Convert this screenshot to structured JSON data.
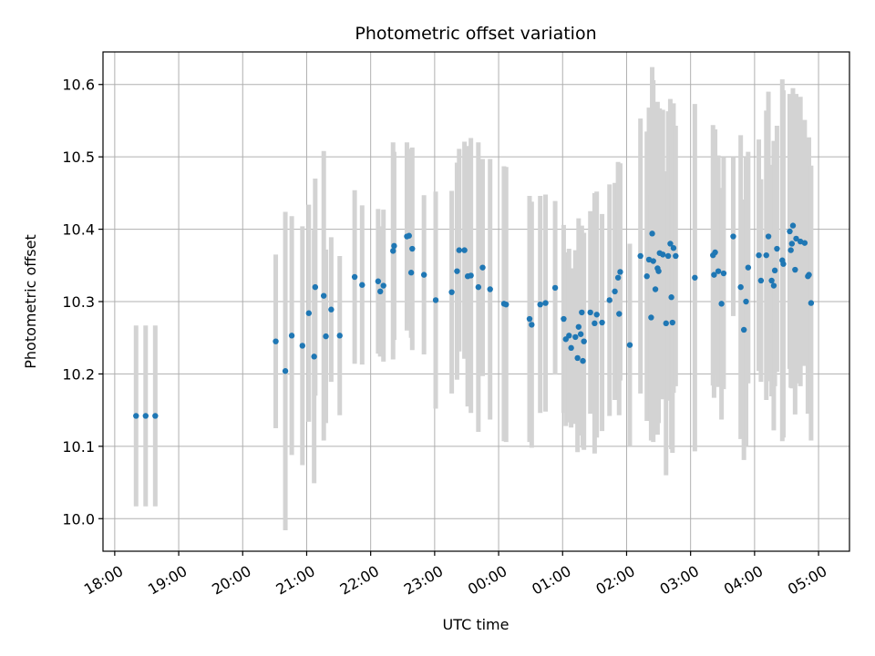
{
  "chart_data": {
    "type": "scatter",
    "title": "Photometric offset variation",
    "xlabel": "UTC time",
    "ylabel": "Photometric offset",
    "x_axis": {
      "kind": "time",
      "start": "18:00",
      "end": "05:00"
    },
    "xlim": [
      "17:49",
      "05:29"
    ],
    "ylim": [
      9.955,
      10.645
    ],
    "grid": true,
    "x_ticks": [
      "18:00",
      "19:00",
      "20:00",
      "21:00",
      "22:00",
      "23:00",
      "00:00",
      "01:00",
      "02:00",
      "03:00",
      "04:00",
      "05:00"
    ],
    "y_ticks": [
      "10.0",
      "10.1",
      "10.2",
      "10.3",
      "10.4",
      "10.5",
      "10.6"
    ],
    "colors": {
      "point": "#1f77b4",
      "errorbar": "#d3d3d3",
      "grid": "#b0b0b0"
    },
    "series": [
      {
        "points": [
          {
            "x": "18:20",
            "y": 10.142,
            "err": 0.125
          },
          {
            "x": "18:29",
            "y": 10.142,
            "err": 0.125
          },
          {
            "x": "18:38",
            "y": 10.142,
            "err": 0.125
          },
          {
            "x": "20:31",
            "y": 10.245,
            "err": 0.12
          },
          {
            "x": "20:40",
            "y": 10.204,
            "err": 0.22
          },
          {
            "x": "20:46",
            "y": 10.253,
            "err": 0.165
          },
          {
            "x": "20:56",
            "y": 10.239,
            "err": 0.165
          },
          {
            "x": "21:02",
            "y": 10.284,
            "err": 0.15
          },
          {
            "x": "21:07",
            "y": 10.224,
            "err": 0.175
          },
          {
            "x": "21:08",
            "y": 10.32,
            "err": 0.15
          },
          {
            "x": "21:16",
            "y": 10.308,
            "err": 0.2
          },
          {
            "x": "21:18",
            "y": 10.252,
            "err": 0.12
          },
          {
            "x": "21:23",
            "y": 10.289,
            "err": 0.1
          },
          {
            "x": "21:31",
            "y": 10.253,
            "err": 0.11
          },
          {
            "x": "21:45",
            "y": 10.334,
            "err": 0.12
          },
          {
            "x": "21:52",
            "y": 10.323,
            "err": 0.11
          },
          {
            "x": "22:07",
            "y": 10.328,
            "err": 0.1
          },
          {
            "x": "22:09",
            "y": 10.314,
            "err": 0.09
          },
          {
            "x": "22:12",
            "y": 10.322,
            "err": 0.105
          },
          {
            "x": "22:21",
            "y": 10.37,
            "err": 0.15
          },
          {
            "x": "22:22",
            "y": 10.377,
            "err": 0.13
          },
          {
            "x": "22:34",
            "y": 10.39,
            "err": 0.13
          },
          {
            "x": "22:36",
            "y": 10.391,
            "err": 0.12
          },
          {
            "x": "22:38",
            "y": 10.34,
            "err": 0.09
          },
          {
            "x": "22:39",
            "y": 10.373,
            "err": 0.14
          },
          {
            "x": "22:50",
            "y": 10.337,
            "err": 0.11
          },
          {
            "x": "23:01",
            "y": 10.302,
            "err": 0.15
          },
          {
            "x": "23:16",
            "y": 10.313,
            "err": 0.14
          },
          {
            "x": "23:21",
            "y": 10.342,
            "err": 0.15
          },
          {
            "x": "23:23",
            "y": 10.371,
            "err": 0.14
          },
          {
            "x": "23:28",
            "y": 10.371,
            "err": 0.15
          },
          {
            "x": "23:31",
            "y": 10.335,
            "err": 0.18
          },
          {
            "x": "23:34",
            "y": 10.336,
            "err": 0.19
          },
          {
            "x": "23:41",
            "y": 10.32,
            "err": 0.2
          },
          {
            "x": "23:45",
            "y": 10.347,
            "err": 0.15
          },
          {
            "x": "23:52",
            "y": 10.317,
            "err": 0.18
          },
          {
            "x": "00:05",
            "y": 10.297,
            "err": 0.19
          },
          {
            "x": "00:07",
            "y": 10.296,
            "err": 0.19
          },
          {
            "x": "00:29",
            "y": 10.276,
            "err": 0.17
          },
          {
            "x": "00:31",
            "y": 10.268,
            "err": 0.17
          },
          {
            "x": "00:39",
            "y": 10.296,
            "err": 0.15
          },
          {
            "x": "00:44",
            "y": 10.298,
            "err": 0.15
          },
          {
            "x": "00:53",
            "y": 10.319,
            "err": 0.12
          },
          {
            "x": "01:01",
            "y": 10.276,
            "err": 0.13
          },
          {
            "x": "01:03",
            "y": 10.248,
            "err": 0.12
          },
          {
            "x": "01:06",
            "y": 10.253,
            "err": 0.12
          },
          {
            "x": "01:08",
            "y": 10.236,
            "err": 0.11
          },
          {
            "x": "01:12",
            "y": 10.251,
            "err": 0.12
          },
          {
            "x": "01:14",
            "y": 10.222,
            "err": 0.13
          },
          {
            "x": "01:15",
            "y": 10.265,
            "err": 0.15
          },
          {
            "x": "01:17",
            "y": 10.255,
            "err": 0.14
          },
          {
            "x": "01:18",
            "y": 10.285,
            "err": 0.12
          },
          {
            "x": "01:19",
            "y": 10.218,
            "err": 0.12
          },
          {
            "x": "01:20",
            "y": 10.245,
            "err": 0.15
          },
          {
            "x": "01:26",
            "y": 10.285,
            "err": 0.14
          },
          {
            "x": "01:30",
            "y": 10.27,
            "err": 0.18
          },
          {
            "x": "01:32",
            "y": 10.282,
            "err": 0.17
          },
          {
            "x": "01:37",
            "y": 10.271,
            "err": 0.15
          },
          {
            "x": "01:44",
            "y": 10.302,
            "err": 0.16
          },
          {
            "x": "01:49",
            "y": 10.314,
            "err": 0.15
          },
          {
            "x": "01:52",
            "y": 10.333,
            "err": 0.16
          },
          {
            "x": "01:53",
            "y": 10.283,
            "err": 0.14
          },
          {
            "x": "01:54",
            "y": 10.341,
            "err": 0.15
          },
          {
            "x": "02:03",
            "y": 10.24,
            "err": 0.14
          },
          {
            "x": "02:13",
            "y": 10.363,
            "err": 0.19
          },
          {
            "x": "02:19",
            "y": 10.335,
            "err": 0.2
          },
          {
            "x": "02:21",
            "y": 10.358,
            "err": 0.21
          },
          {
            "x": "02:23",
            "y": 10.278,
            "err": 0.17
          },
          {
            "x": "02:24",
            "y": 10.394,
            "err": 0.23
          },
          {
            "x": "02:25",
            "y": 10.356,
            "err": 0.25
          },
          {
            "x": "02:27",
            "y": 10.317,
            "err": 0.2
          },
          {
            "x": "02:29",
            "y": 10.346,
            "err": 0.23
          },
          {
            "x": "02:30",
            "y": 10.342,
            "err": 0.21
          },
          {
            "x": "02:31",
            "y": 10.367,
            "err": 0.2
          },
          {
            "x": "02:34",
            "y": 10.365,
            "err": 0.2
          },
          {
            "x": "02:37",
            "y": 10.27,
            "err": 0.21
          },
          {
            "x": "02:39",
            "y": 10.363,
            "err": 0.2
          },
          {
            "x": "02:41",
            "y": 10.38,
            "err": 0.2
          },
          {
            "x": "02:42",
            "y": 10.306,
            "err": 0.21
          },
          {
            "x": "02:43",
            "y": 10.271,
            "err": 0.18
          },
          {
            "x": "02:44",
            "y": 10.374,
            "err": 0.2
          },
          {
            "x": "02:46",
            "y": 10.363,
            "err": 0.18
          },
          {
            "x": "03:04",
            "y": 10.333,
            "err": 0.24
          },
          {
            "x": "03:21",
            "y": 10.364,
            "err": 0.18
          },
          {
            "x": "03:22",
            "y": 10.337,
            "err": 0.17
          },
          {
            "x": "03:23",
            "y": 10.368,
            "err": 0.17
          },
          {
            "x": "03:26",
            "y": 10.342,
            "err": 0.16
          },
          {
            "x": "03:29",
            "y": 10.297,
            "err": 0.16
          },
          {
            "x": "03:31",
            "y": 10.339,
            "err": 0.16
          },
          {
            "x": "03:40",
            "y": 10.39,
            "err": 0.11
          },
          {
            "x": "03:47",
            "y": 10.32,
            "err": 0.21
          },
          {
            "x": "03:50",
            "y": 10.261,
            "err": 0.18
          },
          {
            "x": "03:52",
            "y": 10.3,
            "err": 0.2
          },
          {
            "x": "03:54",
            "y": 10.347,
            "err": 0.16
          },
          {
            "x": "04:04",
            "y": 10.364,
            "err": 0.16
          },
          {
            "x": "04:06",
            "y": 10.329,
            "err": 0.14
          },
          {
            "x": "04:11",
            "y": 10.364,
            "err": 0.2
          },
          {
            "x": "04:13",
            "y": 10.39,
            "err": 0.2
          },
          {
            "x": "04:16",
            "y": 10.329,
            "err": 0.16
          },
          {
            "x": "04:18",
            "y": 10.322,
            "err": 0.2
          },
          {
            "x": "04:19",
            "y": 10.343,
            "err": 0.16
          },
          {
            "x": "04:21",
            "y": 10.373,
            "err": 0.17
          },
          {
            "x": "04:26",
            "y": 10.357,
            "err": 0.25
          },
          {
            "x": "04:27",
            "y": 10.352,
            "err": 0.24
          },
          {
            "x": "04:33",
            "y": 10.397,
            "err": 0.19
          },
          {
            "x": "04:34",
            "y": 10.371,
            "err": 0.19
          },
          {
            "x": "04:35",
            "y": 10.38,
            "err": 0.2
          },
          {
            "x": "04:36",
            "y": 10.405,
            "err": 0.19
          },
          {
            "x": "04:38",
            "y": 10.344,
            "err": 0.2
          },
          {
            "x": "04:39",
            "y": 10.387,
            "err": 0.2
          },
          {
            "x": "04:43",
            "y": 10.383,
            "err": 0.2
          },
          {
            "x": "04:47",
            "y": 10.381,
            "err": 0.17
          },
          {
            "x": "04:50",
            "y": 10.335,
            "err": 0.19
          },
          {
            "x": "04:51",
            "y": 10.337,
            "err": 0.19
          },
          {
            "x": "04:53",
            "y": 10.298,
            "err": 0.19
          }
        ]
      }
    ]
  }
}
